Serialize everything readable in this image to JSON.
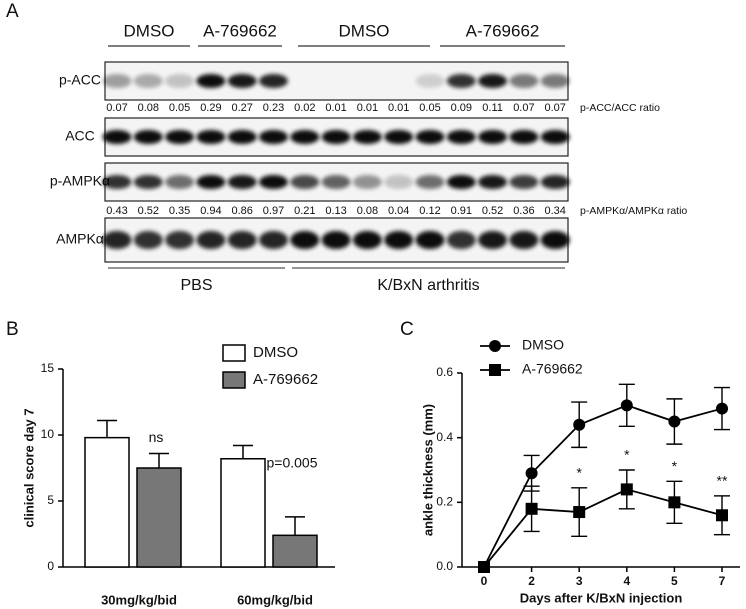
{
  "panel_labels": [
    "A",
    "B",
    "C"
  ],
  "blot": {
    "column_groups": [
      "DMSO",
      "A-769662",
      "DMSO",
      "A-769662"
    ],
    "row_labels": [
      "p-ACC",
      "ACC",
      "p-AMPKα",
      "AMPKα"
    ],
    "ratio_rows": [
      {
        "label": "p-ACC/ACC ratio",
        "values": [
          0.07,
          0.08,
          0.05,
          0.29,
          0.27,
          0.23,
          0.02,
          0.01,
          0.01,
          0.01,
          0.05,
          0.09,
          0.11,
          0.07,
          0.07
        ]
      },
      {
        "label": "p-AMPKα/AMPKα ratio",
        "values": [
          0.43,
          0.52,
          0.35,
          0.94,
          0.86,
          0.97,
          0.21,
          0.13,
          0.08,
          0.04,
          0.12,
          0.91,
          0.52,
          0.36,
          0.34
        ]
      }
    ],
    "conditions": [
      "PBS",
      "K/BxN arthritis"
    ]
  },
  "chart_data": [
    {
      "type": "bar",
      "y_label": "clinical score day 7",
      "categories": [
        "30mg/kg/bid",
        "60mg/kg/bid"
      ],
      "series": [
        {
          "name": "DMSO",
          "color": "#ffffff",
          "values": [
            9.8,
            8.2
          ],
          "errors": [
            1.3,
            1.0
          ]
        },
        {
          "name": "A-769662",
          "color": "#777777",
          "values": [
            7.5,
            2.4
          ],
          "errors": [
            1.1,
            1.4
          ]
        }
      ],
      "annotations": [
        "ns",
        "p=0.005"
      ],
      "ylim": [
        0,
        15
      ],
      "yticks": [
        0,
        5,
        10,
        15
      ]
    },
    {
      "type": "line",
      "x_label": "Days after K/BxN injection",
      "y_label": "ankle thickness (mm)",
      "categories": [
        "0",
        "2",
        "3",
        "4",
        "5",
        "7"
      ],
      "series": [
        {
          "name": "DMSO",
          "color": "#000000",
          "marker": "circle",
          "values": [
            0,
            0.29,
            0.44,
            0.5,
            0.45,
            0.49
          ],
          "errors": [
            0,
            0.055,
            0.07,
            0.065,
            0.07,
            0.065
          ]
        },
        {
          "name": "A-769662",
          "color": "#000000",
          "marker": "square",
          "values": [
            0,
            0.18,
            0.17,
            0.24,
            0.2,
            0.16
          ],
          "errors": [
            0,
            0.07,
            0.075,
            0.06,
            0.065,
            0.06
          ]
        }
      ],
      "significance": [
        null,
        null,
        "*",
        "*",
        "*",
        "**"
      ],
      "ylim": [
        0,
        0.6
      ],
      "yticks": [
        {
          "value": 0,
          "label": "0.0"
        },
        0.2,
        0.4,
        0.6
      ]
    }
  ]
}
